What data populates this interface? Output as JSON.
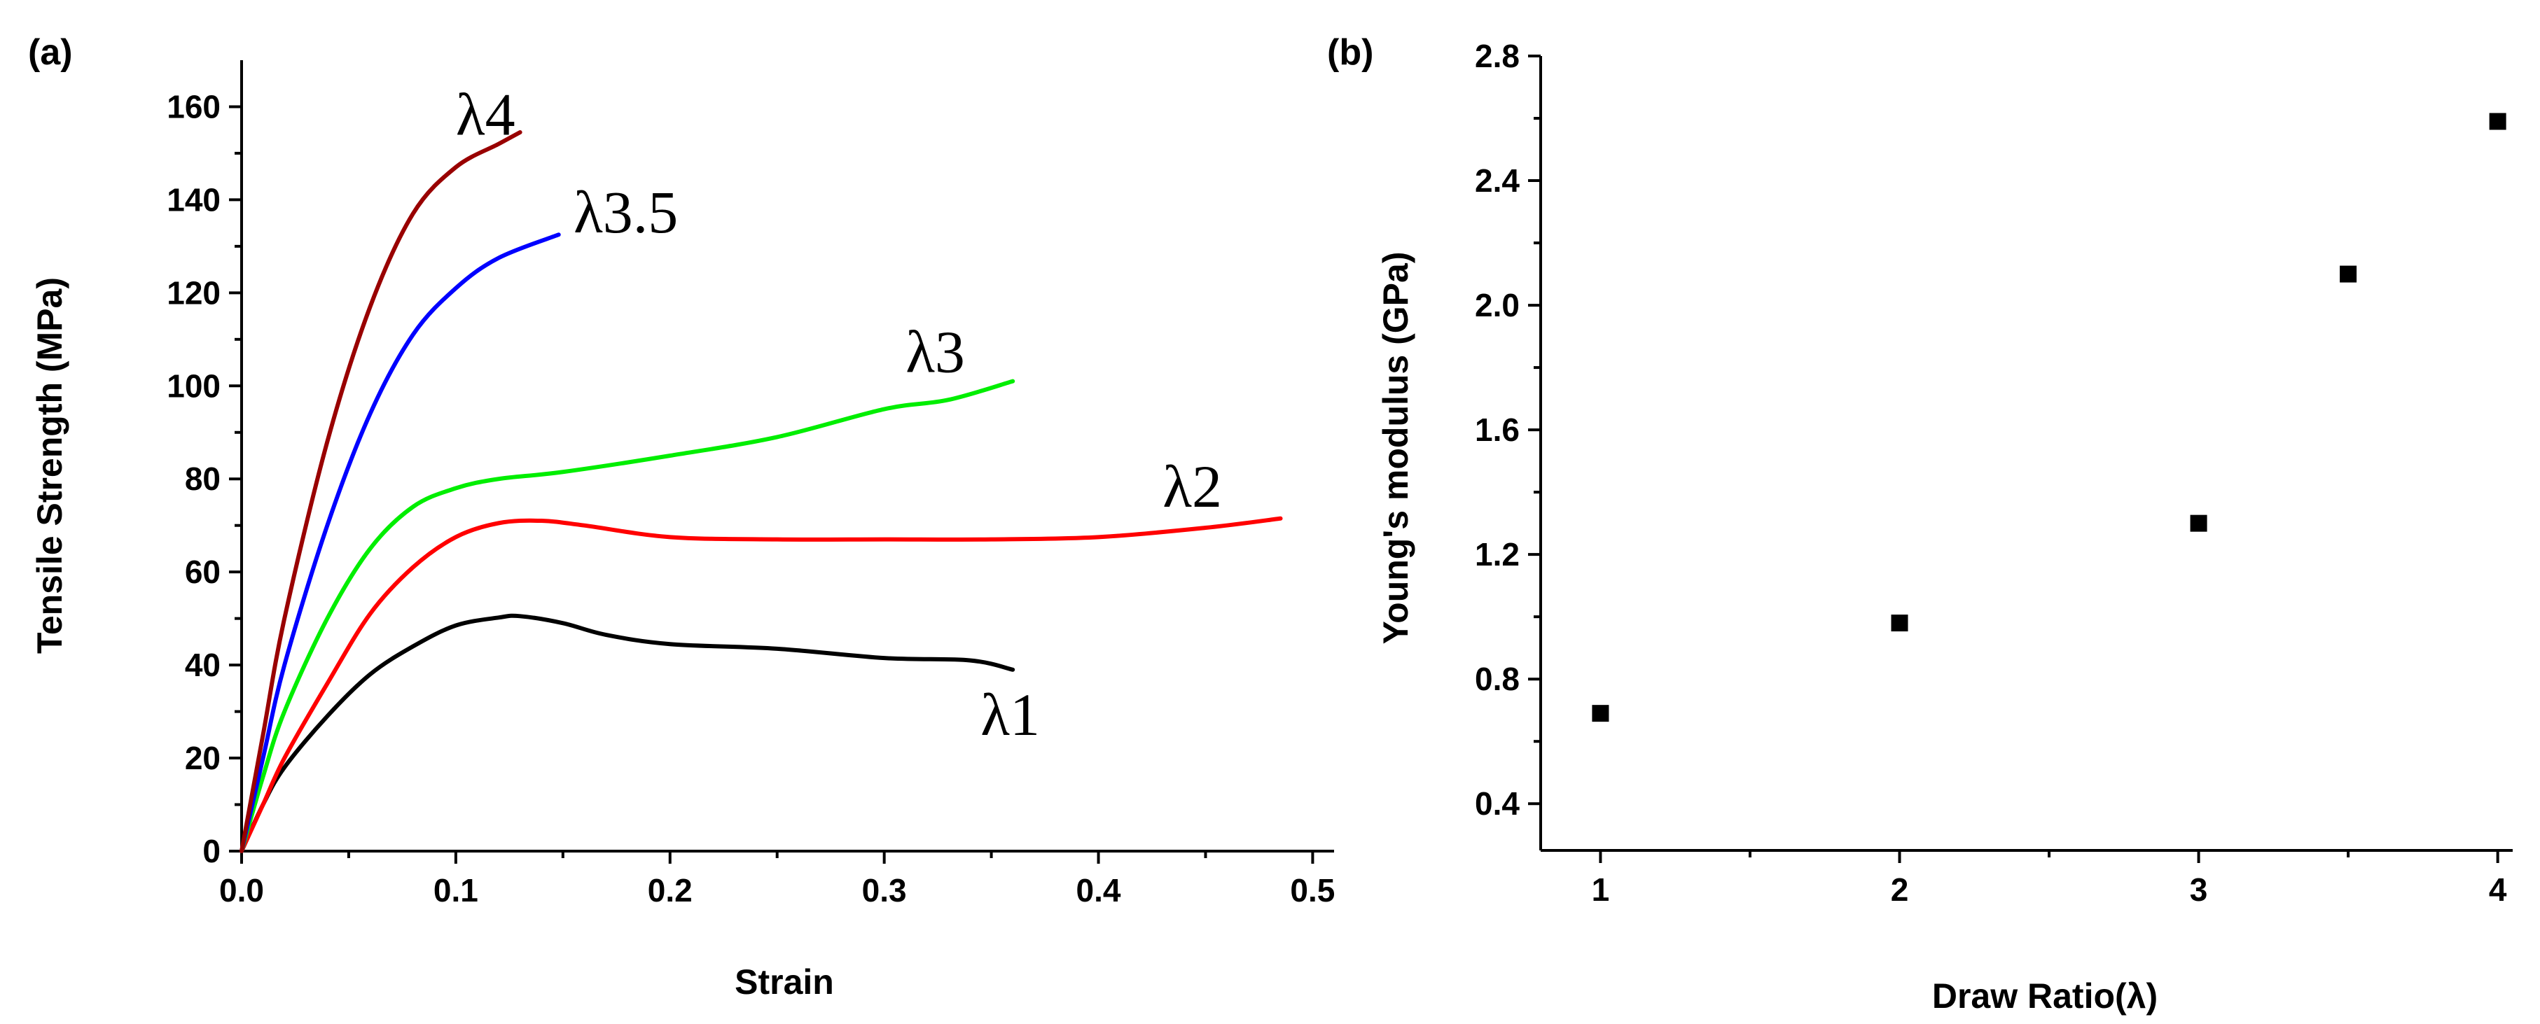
{
  "chart_data": [
    {
      "panel": "(a)",
      "type": "line",
      "title": "",
      "xlabel": "Strain",
      "ylabel": "Tensile Strength (MPa)",
      "xlim": [
        0,
        0.51
      ],
      "ylim": [
        0,
        170
      ],
      "xticks": [
        0.0,
        0.1,
        0.2,
        0.3,
        0.4,
        0.5
      ],
      "xtick_labels": [
        "0.0",
        "0.1",
        "0.2",
        "0.3",
        "0.4",
        "0.5"
      ],
      "yticks": [
        0,
        20,
        40,
        60,
        80,
        100,
        120,
        140,
        160
      ],
      "ytick_labels": [
        "0",
        "20",
        "40",
        "60",
        "80",
        "100",
        "120",
        "140",
        "160"
      ],
      "grid": false,
      "series": [
        {
          "name": "λ1",
          "color": "#000000",
          "label": "λ1",
          "label_anchor": [
            0.345,
            25
          ],
          "points": [
            [
              0,
              0
            ],
            [
              0.01,
              10
            ],
            [
              0.02,
              18
            ],
            [
              0.04,
              29
            ],
            [
              0.06,
              38
            ],
            [
              0.08,
              44
            ],
            [
              0.1,
              48.5
            ],
            [
              0.12,
              50.2
            ],
            [
              0.13,
              50.5
            ],
            [
              0.15,
              49
            ],
            [
              0.17,
              46.5
            ],
            [
              0.2,
              44.5
            ],
            [
              0.25,
              43.5
            ],
            [
              0.3,
              41.5
            ],
            [
              0.34,
              41
            ],
            [
              0.36,
              39
            ]
          ]
        },
        {
          "name": "λ2",
          "color": "#ff0000",
          "label": "λ2",
          "label_anchor": [
            0.43,
            74
          ],
          "points": [
            [
              0,
              0
            ],
            [
              0.01,
              10
            ],
            [
              0.02,
              20
            ],
            [
              0.04,
              36
            ],
            [
              0.06,
              51
            ],
            [
              0.08,
              61
            ],
            [
              0.1,
              67.5
            ],
            [
              0.12,
              70.5
            ],
            [
              0.14,
              71
            ],
            [
              0.16,
              70
            ],
            [
              0.2,
              67.5
            ],
            [
              0.25,
              67
            ],
            [
              0.3,
              67
            ],
            [
              0.35,
              67
            ],
            [
              0.4,
              67.5
            ],
            [
              0.45,
              69.5
            ],
            [
              0.485,
              71.5
            ]
          ]
        },
        {
          "name": "λ3",
          "color": "#00ee00",
          "label": "λ3",
          "label_anchor": [
            0.31,
            103
          ],
          "points": [
            [
              0,
              0
            ],
            [
              0.01,
              16
            ],
            [
              0.02,
              30
            ],
            [
              0.04,
              50
            ],
            [
              0.06,
              65
            ],
            [
              0.08,
              74
            ],
            [
              0.1,
              78
            ],
            [
              0.12,
              80
            ],
            [
              0.15,
              81.5
            ],
            [
              0.2,
              85
            ],
            [
              0.25,
              89
            ],
            [
              0.3,
              95
            ],
            [
              0.33,
              97
            ],
            [
              0.36,
              101
            ]
          ]
        },
        {
          "name": "λ3.5",
          "color": "#0000ff",
          "label": "λ3.5",
          "label_anchor": [
            0.155,
            133
          ],
          "points": [
            [
              0,
              0
            ],
            [
              0.01,
              20
            ],
            [
              0.02,
              40
            ],
            [
              0.04,
              70
            ],
            [
              0.06,
              94
            ],
            [
              0.08,
              111
            ],
            [
              0.1,
              121
            ],
            [
              0.12,
              127.5
            ],
            [
              0.148,
              132.5
            ]
          ]
        },
        {
          "name": "λ4",
          "color": "#990000",
          "label": "λ4",
          "label_anchor": [
            0.1,
            154
          ],
          "points": [
            [
              0,
              0
            ],
            [
              0.01,
              25
            ],
            [
              0.02,
              50
            ],
            [
              0.04,
              88
            ],
            [
              0.06,
              117
            ],
            [
              0.08,
              137
            ],
            [
              0.1,
              147
            ],
            [
              0.12,
              152
            ],
            [
              0.13,
              154.5
            ]
          ]
        }
      ]
    },
    {
      "panel": "(b)",
      "type": "scatter",
      "title": "",
      "xlabel": "Draw Ratio(λ)",
      "ylabel": "Young's modulus (GPa)",
      "xlim": [
        0.8,
        4.05
      ],
      "ylim": [
        0.25,
        2.8
      ],
      "xticks": [
        1,
        2,
        3,
        4
      ],
      "xtick_labels": [
        "1",
        "2",
        "3",
        "4"
      ],
      "yticks": [
        0.4,
        0.8,
        1.2,
        1.6,
        2.0,
        2.4,
        2.8
      ],
      "ytick_labels": [
        "0.4",
        "0.8",
        "1.2",
        "1.6",
        "2.0",
        "2.4",
        "2.8"
      ],
      "grid": false,
      "marker": "square",
      "color": "#000000",
      "x": [
        1,
        2,
        3,
        3.5,
        4
      ],
      "y": [
        0.69,
        0.98,
        1.3,
        2.1,
        2.59
      ]
    }
  ]
}
